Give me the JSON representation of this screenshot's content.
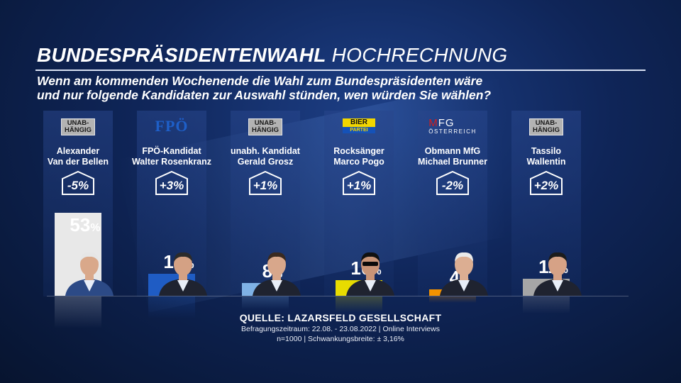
{
  "header": {
    "title_bold": "BUNDESPRÄSIDENTENWAHL",
    "title_light": "HOCHRECHNUNG",
    "question_line1": "Wenn am kommenden Wochenende die Wahl zum Bundespräsidenten wäre",
    "question_line2": "und nur folgende Kandidaten zur Auswahl stünden, wen würden Sie wählen?"
  },
  "badges": {
    "unab_line1": "UNAB-",
    "unab_line2": "HÄNGIG",
    "fpo": "FPÖ",
    "bier_line1": "BIER",
    "bier_line2": "PARTEI",
    "mfg_line1": "MFG",
    "mfg_line2": "ÖSTERREICH"
  },
  "chart_data": {
    "type": "bar",
    "title": "BUNDESPRÄSIDENTENWAHL HOCHRECHNUNG",
    "unit": "%",
    "ylim": [
      0,
      60
    ],
    "categories": [
      {
        "line1": "Alexander",
        "line2": "Van der Bellen"
      },
      {
        "line1": "FPÖ-Kandidat",
        "line2": "Walter Rosenkranz"
      },
      {
        "line1": "unabh. Kandidat",
        "line2": "Gerald Grosz"
      },
      {
        "line1": "Rocksänger",
        "line2": "Marco Pogo"
      },
      {
        "line1": "Obmann MfG",
        "line2": "Michael Brunner"
      },
      {
        "line1": "Tassilo",
        "line2": "Wallentin"
      }
    ],
    "values": [
      53,
      14,
      8,
      10,
      4,
      11
    ],
    "value_labels": [
      "53",
      "14",
      "8",
      "10",
      "4",
      "11"
    ],
    "changes": [
      "-5%",
      "+3%",
      "+1%",
      "+1%",
      "-2%",
      "+2%"
    ],
    "badge_types": [
      "unab",
      "fpo",
      "unab",
      "bier",
      "mfg",
      "unab"
    ],
    "colors": [
      "#e8e8e8",
      "#1f5cc4",
      "#7fb2e6",
      "#e8dc00",
      "#f39200",
      "#a6a6a6"
    ]
  },
  "source": {
    "main": "QUELLE:  LAZARSFELD GESELLSCHAFT",
    "line1": "Befragungszeitraum: 22.08. - 23.08.2022 | Online Interviews",
    "line2": "n=1000 |  Schwankungsbreite: ± 3,16%"
  }
}
